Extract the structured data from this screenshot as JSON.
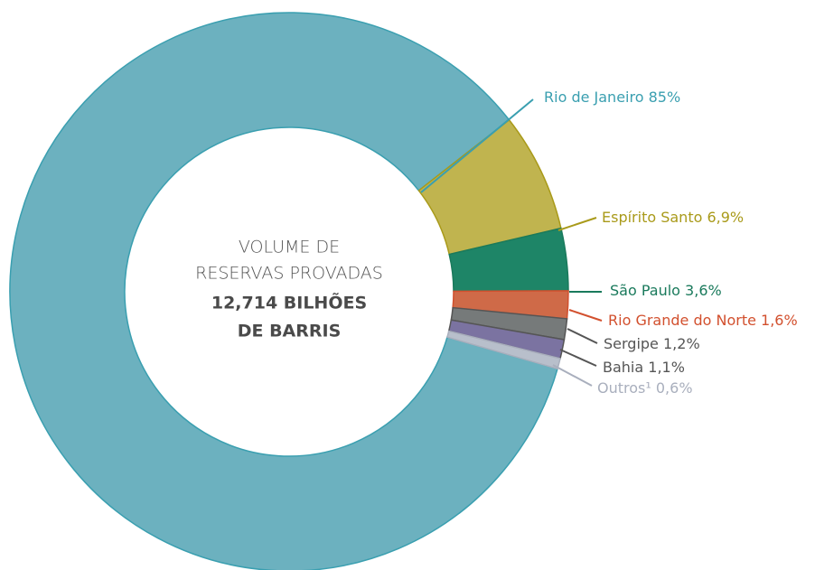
{
  "chart_data": {
    "type": "donut",
    "center_text": [
      "VOLUME DE",
      "RESERVAS PROVADAS",
      "12,714 BILHÕES",
      "DE BARRIS"
    ],
    "categories": [
      "Rio de Janeiro",
      "Espírito Santo",
      "São Paulo",
      "Rio Grande do Norte",
      "Sergipe",
      "Bahia",
      "Outros¹"
    ],
    "values": [
      85,
      6.9,
      3.6,
      1.6,
      1.2,
      1.1,
      0.6
    ],
    "value_labels": [
      "85%",
      "6,9%",
      "3,6%",
      "1,6%",
      "1,2%",
      "1,1%",
      "0,6%"
    ],
    "colors": [
      "#6cb1bf",
      "#c0b44f",
      "#1e8567",
      "#cf6a48",
      "#767a7a",
      "#7b73a1",
      "#b8bfcb"
    ],
    "label_colors": [
      "#3a9fb0",
      "#a99a1a",
      "#1a7a5c",
      "#d2502e",
      "#555555",
      "#555555",
      "#a9afbd"
    ]
  }
}
